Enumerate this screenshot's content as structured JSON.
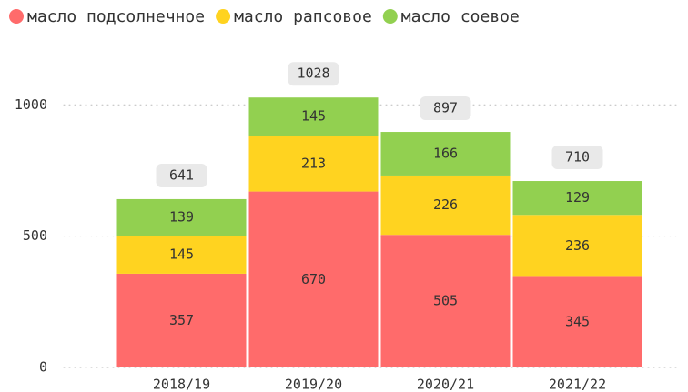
{
  "chart_data": {
    "type": "stacked_bar",
    "categories": [
      "2018/19",
      "2019/20",
      "2020/21",
      "2021/22"
    ],
    "series": [
      {
        "name": "масло подсолнечное",
        "color": "#ff6b6b",
        "values": [
          357,
          670,
          505,
          345
        ]
      },
      {
        "name": "масло рапсовое",
        "color": "#ffd320",
        "values": [
          145,
          213,
          226,
          236
        ]
      },
      {
        "name": "масло соевое",
        "color": "#92d050",
        "values": [
          139,
          145,
          166,
          129
        ]
      }
    ],
    "totals": [
      641,
      1028,
      897,
      710
    ],
    "ylim": [
      0,
      1150
    ],
    "yticks": [
      0,
      500,
      1000
    ],
    "grid": true,
    "legend": "top"
  }
}
